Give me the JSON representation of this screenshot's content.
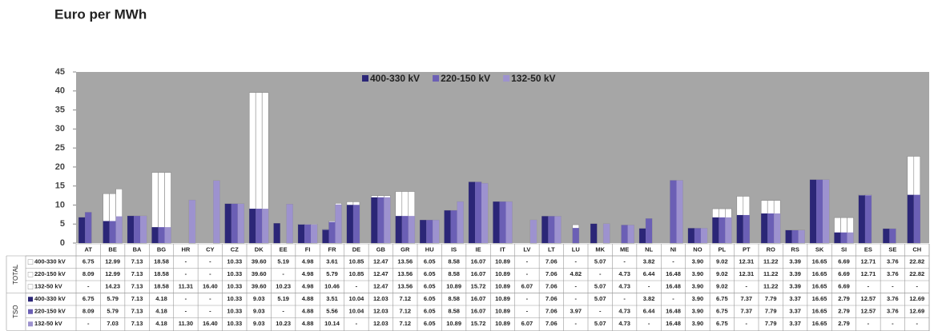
{
  "chart_data": {
    "type": "bar",
    "title": "Euro per MWh",
    "categories": [
      "AT",
      "BE",
      "BA",
      "BG",
      "HR",
      "CY",
      "CZ",
      "DK",
      "EE",
      "FI",
      "FR",
      "DE",
      "GB",
      "GR",
      "HU",
      "IS",
      "IE",
      "IT",
      "LV",
      "LT",
      "LU",
      "MK",
      "ME",
      "NL",
      "NI",
      "NO",
      "PL",
      "PT",
      "RO",
      "RS",
      "SK",
      "SI",
      "ES",
      "SE",
      "CH"
    ],
    "ylim": [
      0,
      45
    ],
    "yticks": [
      0,
      5,
      10,
      15,
      20,
      25,
      30,
      35,
      40,
      45
    ],
    "grid": false,
    "legend": "top",
    "groups": [
      {
        "name": "TOTAL",
        "series": [
          {
            "name": "400-330 kV",
            "color": "#ffffff",
            "values": [
              6.75,
              12.99,
              7.13,
              18.58,
              null,
              null,
              10.33,
              39.6,
              5.19,
              4.98,
              3.61,
              10.85,
              12.47,
              13.56,
              6.05,
              8.58,
              16.07,
              10.89,
              null,
              7.06,
              null,
              5.07,
              null,
              3.82,
              null,
              3.9,
              9.02,
              12.31,
              11.22,
              3.39,
              16.65,
              6.69,
              12.71,
              3.76,
              22.82
            ],
            "value_labels": [
              "6.75",
              "12.99",
              "7.13",
              "18.58",
              "-",
              "-",
              "10.33",
              "39.60",
              "5.19",
              "4.98",
              "3.61",
              "10.85",
              "12.47",
              "13.56",
              "6.05",
              "8.58",
              "16.07",
              "10.89",
              "-",
              "7.06",
              "-",
              "5.07",
              "-",
              "3.82",
              "-",
              "3.90",
              "9.02",
              "12.31",
              "11.22",
              "3.39",
              "16.65",
              "6.69",
              "12.71",
              "3.76",
              "22.82"
            ]
          },
          {
            "name": "220-150 kV",
            "color": "#ffffff",
            "values": [
              8.09,
              12.99,
              7.13,
              18.58,
              null,
              null,
              10.33,
              39.6,
              null,
              4.98,
              5.79,
              10.85,
              12.47,
              13.56,
              6.05,
              8.58,
              16.07,
              10.89,
              null,
              7.06,
              4.82,
              null,
              4.73,
              6.44,
              16.48,
              3.9,
              9.02,
              12.31,
              11.22,
              3.39,
              16.65,
              6.69,
              12.71,
              3.76,
              22.82
            ],
            "value_labels": [
              "8.09",
              "12.99",
              "7.13",
              "18.58",
              "-",
              "-",
              "10.33",
              "39.60",
              "-",
              "4.98",
              "5.79",
              "10.85",
              "12.47",
              "13.56",
              "6.05",
              "8.58",
              "16.07",
              "10.89",
              "-",
              "7.06",
              "4.82",
              "-",
              "4.73",
              "6.44",
              "16.48",
              "3.90",
              "9.02",
              "12.31",
              "11.22",
              "3.39",
              "16.65",
              "6.69",
              "12.71",
              "3.76",
              "22.82"
            ]
          },
          {
            "name": "132-50 kV",
            "color": "#ffffff",
            "values": [
              null,
              14.23,
              7.13,
              18.58,
              11.31,
              16.4,
              10.33,
              39.6,
              10.23,
              4.98,
              10.46,
              null,
              12.47,
              13.56,
              6.05,
              10.89,
              15.72,
              10.89,
              6.07,
              7.06,
              null,
              5.07,
              4.73,
              null,
              16.48,
              3.9,
              9.02,
              null,
              11.22,
              3.39,
              16.65,
              6.69,
              null,
              null,
              null
            ],
            "value_labels": [
              "-",
              "14.23",
              "7.13",
              "18.58",
              "11.31",
              "16.40",
              "10.33",
              "39.60",
              "10.23",
              "4.98",
              "10.46",
              "-",
              "12.47",
              "13.56",
              "6.05",
              "10.89",
              "15.72",
              "10.89",
              "6.07",
              "7.06",
              "-",
              "5.07",
              "4.73",
              "-",
              "16.48",
              "3.90",
              "9.02",
              "-",
              "11.22",
              "3.39",
              "16.65",
              "6.69",
              "-",
              "-",
              "-"
            ]
          }
        ]
      },
      {
        "name": "TSO",
        "series": [
          {
            "name": "400-330 kV",
            "color": "#2b2677",
            "values": [
              6.75,
              5.79,
              7.13,
              4.18,
              null,
              null,
              10.33,
              9.03,
              5.19,
              4.88,
              3.51,
              10.04,
              12.03,
              7.12,
              6.05,
              8.58,
              16.07,
              10.89,
              null,
              7.06,
              null,
              5.07,
              null,
              3.82,
              null,
              3.9,
              6.75,
              7.37,
              7.79,
              3.37,
              16.65,
              2.79,
              12.57,
              3.76,
              12.69
            ],
            "value_labels": [
              "6.75",
              "5.79",
              "7.13",
              "4.18",
              "-",
              "-",
              "10.33",
              "9.03",
              "5.19",
              "4.88",
              "3.51",
              "10.04",
              "12.03",
              "7.12",
              "6.05",
              "8.58",
              "16.07",
              "10.89",
              "-",
              "7.06",
              "-",
              "5.07",
              "-",
              "3.82",
              "-",
              "3.90",
              "6.75",
              "7.37",
              "7.79",
              "3.37",
              "16.65",
              "2.79",
              "12.57",
              "3.76",
              "12.69"
            ]
          },
          {
            "name": "220-150 kV",
            "color": "#6b5fb5",
            "values": [
              8.09,
              5.79,
              7.13,
              4.18,
              null,
              null,
              10.33,
              9.03,
              null,
              4.88,
              5.56,
              10.04,
              12.03,
              7.12,
              6.05,
              8.58,
              16.07,
              10.89,
              null,
              7.06,
              3.97,
              null,
              4.73,
              6.44,
              16.48,
              3.9,
              6.75,
              7.37,
              7.79,
              3.37,
              16.65,
              2.79,
              12.57,
              3.76,
              12.69
            ],
            "value_labels": [
              "8.09",
              "5.79",
              "7.13",
              "4.18",
              "-",
              "-",
              "10.33",
              "9.03",
              "-",
              "4.88",
              "5.56",
              "10.04",
              "12.03",
              "7.12",
              "6.05",
              "8.58",
              "16.07",
              "10.89",
              "-",
              "7.06",
              "3.97",
              "-",
              "4.73",
              "6.44",
              "16.48",
              "3.90",
              "6.75",
              "7.37",
              "7.79",
              "3.37",
              "16.65",
              "2.79",
              "12.57",
              "3.76",
              "12.69"
            ]
          },
          {
            "name": "132-50 kV",
            "color": "#9d92cf",
            "values": [
              null,
              7.03,
              7.13,
              4.18,
              11.3,
              16.4,
              10.33,
              9.03,
              10.23,
              4.88,
              10.14,
              null,
              12.03,
              7.12,
              6.05,
              10.89,
              15.72,
              10.89,
              6.07,
              7.06,
              null,
              5.07,
              4.73,
              null,
              16.48,
              3.9,
              6.75,
              null,
              7.79,
              3.37,
              16.65,
              2.79,
              null,
              null,
              null
            ],
            "value_labels": [
              "-",
              "7.03",
              "7.13",
              "4.18",
              "11.30",
              "16.40",
              "10.33",
              "9.03",
              "10.23",
              "4.88",
              "10.14",
              "-",
              "12.03",
              "7.12",
              "6.05",
              "10.89",
              "15.72",
              "10.89",
              "6.07",
              "7.06",
              "-",
              "5.07",
              "4.73",
              "-",
              "16.48",
              "3.90",
              "6.75",
              "-",
              "7.79",
              "3.37",
              "16.65",
              "2.79",
              "-",
              "-",
              "-"
            ]
          }
        ]
      }
    ]
  }
}
